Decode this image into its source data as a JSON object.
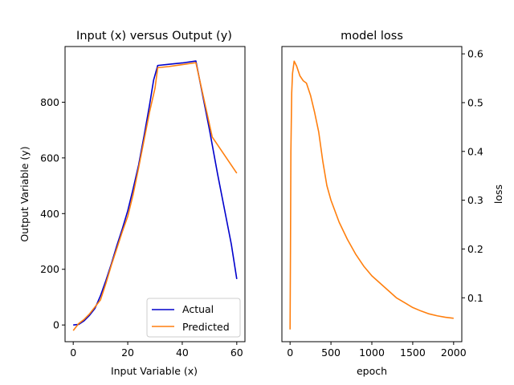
{
  "chart_data": [
    {
      "type": "line",
      "title": "Input (x) versus Output (y)",
      "xlabel": "Input Variable (x)",
      "ylabel": "Output Variable (y)",
      "xlim": [
        -3,
        63
      ],
      "ylim": [
        -60,
        1000
      ],
      "xticks": [
        0,
        20,
        40,
        60
      ],
      "yticks": [
        0,
        200,
        400,
        600,
        800
      ],
      "legend_position": "lower right",
      "series": [
        {
          "name": "Actual",
          "color": "#0000cc",
          "points": [
            [
              0,
              0
            ],
            [
              2,
              2
            ],
            [
              4,
              15
            ],
            [
              6,
              35
            ],
            [
              8,
              60
            ],
            [
              10,
              105
            ],
            [
              12,
              160
            ],
            [
              14,
              220
            ],
            [
              16,
              285
            ],
            [
              18,
              345
            ],
            [
              20,
              410
            ],
            [
              22,
              490
            ],
            [
              24,
              575
            ],
            [
              26,
              680
            ],
            [
              28,
              790
            ],
            [
              29.5,
              880
            ],
            [
              31,
              932
            ],
            [
              35,
              936
            ],
            [
              40,
              941
            ],
            [
              45,
              948
            ],
            [
              50,
              700
            ],
            [
              53,
              540
            ],
            [
              56,
              390
            ],
            [
              58,
              290
            ],
            [
              60,
              165
            ]
          ]
        },
        {
          "name": "Predicted",
          "color": "#ff7f0e",
          "points": [
            [
              0,
              -20
            ],
            [
              2,
              5
            ],
            [
              4,
              20
            ],
            [
              6,
              40
            ],
            [
              8,
              65
            ],
            [
              10,
              90
            ],
            [
              12,
              150
            ],
            [
              14,
              215
            ],
            [
              16,
              275
            ],
            [
              18,
              335
            ],
            [
              20,
              390
            ],
            [
              22,
              470
            ],
            [
              24,
              565
            ],
            [
              26,
              665
            ],
            [
              28,
              765
            ],
            [
              30,
              850
            ],
            [
              31,
              924
            ],
            [
              35,
              928
            ],
            [
              40,
              935
            ],
            [
              45,
              942
            ],
            [
              51,
              675
            ],
            [
              60,
              545
            ]
          ]
        }
      ]
    },
    {
      "type": "line",
      "title": "model loss",
      "xlabel": "epoch",
      "ylabel": "loss",
      "xlim": [
        -100,
        2100
      ],
      "ylim": [
        0.01,
        0.615
      ],
      "xticks": [
        0,
        500,
        1000,
        1500,
        2000
      ],
      "yticks": [
        0.1,
        0.2,
        0.3,
        0.4,
        0.5,
        0.6
      ],
      "y_axis_side": "right",
      "series": [
        {
          "color": "#ff7f0e",
          "points": [
            [
              0,
              0.035
            ],
            [
              5,
              0.2
            ],
            [
              10,
              0.4
            ],
            [
              20,
              0.52
            ],
            [
              30,
              0.56
            ],
            [
              50,
              0.585
            ],
            [
              80,
              0.575
            ],
            [
              120,
              0.555
            ],
            [
              160,
              0.545
            ],
            [
              200,
              0.54
            ],
            [
              250,
              0.515
            ],
            [
              300,
              0.48
            ],
            [
              350,
              0.44
            ],
            [
              400,
              0.38
            ],
            [
              450,
              0.33
            ],
            [
              500,
              0.3
            ],
            [
              600,
              0.255
            ],
            [
              700,
              0.22
            ],
            [
              800,
              0.19
            ],
            [
              900,
              0.165
            ],
            [
              1000,
              0.145
            ],
            [
              1100,
              0.13
            ],
            [
              1200,
              0.115
            ],
            [
              1300,
              0.1
            ],
            [
              1400,
              0.09
            ],
            [
              1500,
              0.08
            ],
            [
              1600,
              0.073
            ],
            [
              1700,
              0.067
            ],
            [
              1800,
              0.063
            ],
            [
              1900,
              0.06
            ],
            [
              2000,
              0.058
            ]
          ]
        }
      ]
    }
  ]
}
